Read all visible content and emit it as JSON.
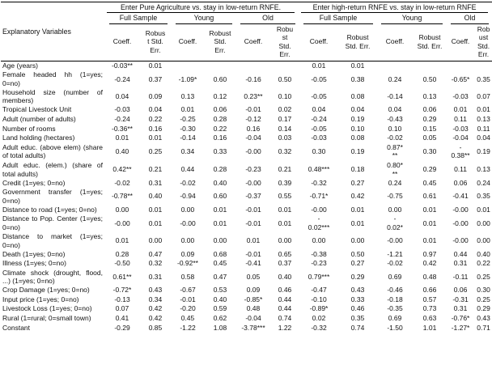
{
  "table": {
    "explanatory_label": "Explanatory Variables",
    "group_headers": [
      "Enter Pure Agriculture vs. stay in low-return RNFE.",
      "Enter high-return RNFE vs. stay in low-return RNFE"
    ],
    "sample_headers": [
      "Full Sample",
      "Young",
      "Old",
      "Full Sample",
      "Young",
      "Old"
    ],
    "col_headers": [
      "Coeff.",
      "Robus\nt Std.\nErr.",
      "Coeff.",
      "Robust\nStd.\nErr.",
      "Coeff.",
      "Robu\nst\nStd.\nErr.",
      "Coeff.",
      "Robust\nStd. Err.",
      "Coeff.",
      "Robust\nStd. Err.",
      "Coeff.",
      "Rob\nust\nStd.\nErr."
    ],
    "rows": [
      {
        "label": "Age (years)",
        "v": [
          "-0.03**",
          "0.01",
          "",
          "",
          "",
          "",
          "0.01",
          "0.01",
          "",
          "",
          "",
          ""
        ]
      },
      {
        "label": "Female headed hh (1=yes; 0=no)",
        "v": [
          "-0.24",
          "0.37",
          "-1.09*",
          "0.60",
          "-0.16",
          "0.50",
          "-0.05",
          "0.38",
          "0.24",
          "0.50",
          "-0.65*",
          "0.35"
        ]
      },
      {
        "label": "Household size (number of members)",
        "v": [
          "0.04",
          "0.09",
          "0.13",
          "0.12",
          "0.23**",
          "0.10",
          "-0.05",
          "0.08",
          "-0.14",
          "0.13",
          "-0.03",
          "0.07"
        ]
      },
      {
        "label": "Tropical Livestock Unit",
        "v": [
          "-0.03",
          "0.04",
          "0.01",
          "0.06",
          "-0.01",
          "0.02",
          "0.04",
          "0.04",
          "0.04",
          "0.06",
          "0.01",
          "0.01"
        ]
      },
      {
        "label": "Adult (number of adults)",
        "v": [
          "-0.24",
          "0.22",
          "-0.25",
          "0.28",
          "-0.12",
          "0.17",
          "-0.24",
          "0.19",
          "-0.43",
          "0.29",
          "0.11",
          "0.13"
        ]
      },
      {
        "label": "Number of rooms",
        "v": [
          "-0.36**",
          "0.16",
          "-0.30",
          "0.22",
          "0.16",
          "0.14",
          "-0.05",
          "0.10",
          "0.10",
          "0.15",
          "-0.03",
          "0.11"
        ]
      },
      {
        "label": "Land holding (hectares)",
        "v": [
          "0.01",
          "0.01",
          "-0.14",
          "0.16",
          "-0.04",
          "0.03",
          "-0.03",
          "0.08",
          "-0.02",
          "0.05",
          "-0.04",
          "0.04"
        ]
      },
      {
        "label": "Adult educ. (above elem) (share of total adults)",
        "v": [
          "0.40",
          "0.25",
          "0.34",
          "0.33",
          "-0.00",
          "0.32",
          "0.30",
          "0.19",
          "0.87*\n**",
          "0.30",
          "-\n0.38**",
          "0.19"
        ]
      },
      {
        "label": "Adult educ. (elem.) (share of total adults)",
        "v": [
          "0.42**",
          "0.21",
          "0.44",
          "0.28",
          "-0.23",
          "0.21",
          "0.48***",
          "0.18",
          "0.80*\n**",
          "0.29",
          "0.11",
          "0.13"
        ]
      },
      {
        "label": "Credit (1=yes; 0=no)",
        "v": [
          "-0.02",
          "0.31",
          "-0.02",
          "0.40",
          "-0.00",
          "0.39",
          "-0.32",
          "0.27",
          "0.24",
          "0.45",
          "0.06",
          "0.24"
        ]
      },
      {
        "label": "Government transfer (1=yes; 0=no)",
        "v": [
          "-0.78**",
          "0.40",
          "-0.94",
          "0.60",
          "-0.37",
          "0.55",
          "-0.71*",
          "0.42",
          "-0.75",
          "0.61",
          "-0.41",
          "0.35"
        ]
      },
      {
        "label": "Distance to road (1=yes; 0=no)",
        "v": [
          "0.00",
          "0.01",
          "0.00",
          "0.01",
          "-0.01",
          "0.01",
          "-0.00",
          "0.01",
          "0.00",
          "0.01",
          "-0.00",
          "0.01"
        ]
      },
      {
        "label": "Distance to Pop. Center (1=yes; 0=no)",
        "v": [
          "-0.00",
          "0.01",
          "-0.00",
          "0.01",
          "-0.01",
          "0.01",
          "-\n0.02***",
          "0.01",
          "-\n0.02*",
          "0.01",
          "-0.00",
          "0.00"
        ]
      },
      {
        "label": "Distance to market (1=yes; 0=no)",
        "v": [
          "0.01",
          "0.00",
          "0.00",
          "0.00",
          "0.01",
          "0.00",
          "0.00",
          "0.00",
          "-0.00",
          "0.01",
          "-0.00",
          "0.00"
        ]
      },
      {
        "label": "Death (1=yes; 0=no)",
        "v": [
          "0.28",
          "0.47",
          "0.09",
          "0.68",
          "-0.01",
          "0.65",
          "-0.38",
          "0.50",
          "-1.21",
          "0.97",
          "0.44",
          "0.40"
        ]
      },
      {
        "label": "Illness (1=yes; 0=no)",
        "v": [
          "-0.50",
          "0.32",
          "-0.92**",
          "0.45",
          "-0.41",
          "0.37",
          "-0.23",
          "0.27",
          "-0.02",
          "0.42",
          "0.31",
          "0.22"
        ]
      },
      {
        "label": "Climate shock (drought, flood, ...) (1=yes; 0=no)",
        "v": [
          "0.61**",
          "0.31",
          "0.58",
          "0.47",
          "0.05",
          "0.40",
          "0.79***",
          "0.29",
          "0.69",
          "0.48",
          "-0.11",
          "0.25"
        ]
      },
      {
        "label": "Crop Damage (1=yes; 0=no)",
        "v": [
          "-0.72*",
          "0.43",
          "-0.67",
          "0.53",
          "0.09",
          "0.46",
          "-0.47",
          "0.43",
          "-0.46",
          "0.66",
          "0.06",
          "0.30"
        ]
      },
      {
        "label": "Input price  (1=yes; 0=no)",
        "v": [
          "-0.13",
          "0.34",
          "-0.01",
          "0.40",
          "-0.85*",
          "0.44",
          "-0.10",
          "0.33",
          "-0.18",
          "0.57",
          "-0.31",
          "0.25"
        ]
      },
      {
        "label": "Livestock Loss (1=yes; 0=no)",
        "v": [
          "0.07",
          "0.42",
          "-0.20",
          "0.59",
          "0.48",
          "0.44",
          "-0.89*",
          "0.46",
          "-0.35",
          "0.73",
          "0.31",
          "0.29"
        ]
      },
      {
        "label": "Rural (1=rural; 0=small town)",
        "v": [
          "0.41",
          "0.42",
          "0.45",
          "0.62",
          "-0.04",
          "0.74",
          "0.02",
          "0.35",
          "0.69",
          "0.63",
          "-0.76*",
          "0.43"
        ]
      },
      {
        "label": "Constant",
        "v": [
          "-0.29",
          "0.85",
          "-1.22",
          "1.08",
          "-3.78***",
          "1.22",
          "-0.32",
          "0.74",
          "-1.50",
          "1.01",
          "-1.27*",
          "0.71"
        ]
      }
    ]
  }
}
